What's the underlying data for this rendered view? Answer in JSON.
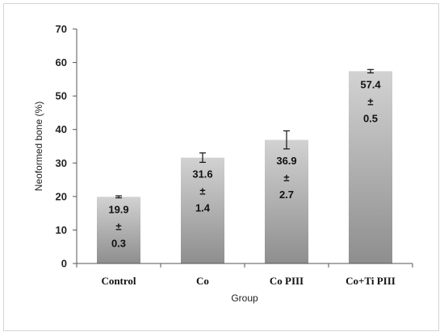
{
  "chart_data": {
    "type": "bar",
    "title": "",
    "xlabel": "Group",
    "ylabel": "Neoformed bone (%)",
    "ylim": [
      0,
      70
    ],
    "yticks": [
      0,
      10,
      20,
      30,
      40,
      50,
      60,
      70
    ],
    "categories": [
      "Control",
      "Co",
      "Co PIII",
      "Co+Ti PIII"
    ],
    "values": [
      19.9,
      31.6,
      36.9,
      57.4
    ],
    "errors": [
      0.3,
      1.4,
      2.7,
      0.5
    ],
    "value_labels": [
      [
        "19.9",
        "±",
        "0.3"
      ],
      [
        "31.6",
        "±",
        "1.4"
      ],
      [
        "36.9",
        "±",
        "2.7"
      ],
      [
        "57.4",
        "±",
        "0.5"
      ]
    ],
    "grid": false,
    "legend": "none",
    "colors": {
      "bar_top": "#d2d2d2",
      "bar_bottom": "#8e8e8e",
      "axis": "#555555"
    }
  }
}
